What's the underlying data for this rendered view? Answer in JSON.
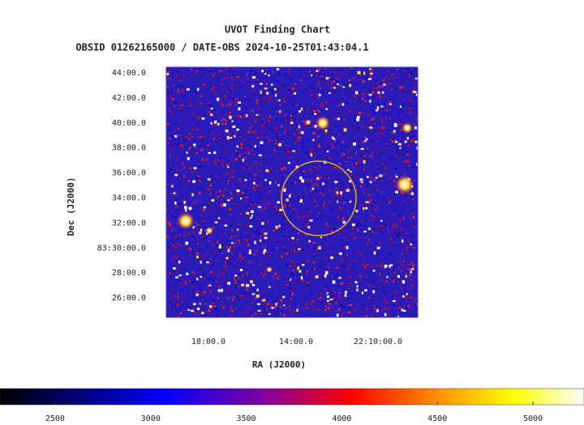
{
  "title": "UVOT Finding Chart",
  "subtitle": "OBSID 01262165000 / DATE-OBS 2024-10-25T01:43:04.1",
  "y_axis": {
    "label": "Dec (J2000)",
    "ticks": [
      "44:00.0",
      "42:00.0",
      "40:00.0",
      "38:00.0",
      "36:00.0",
      "34:00.0",
      "32:00.0",
      "83:30:00.0",
      "28:00.0",
      "26:00.0"
    ]
  },
  "x_axis": {
    "label": "RA (J2000)",
    "ticks": [
      "18:00.0",
      "14:00.0",
      "22:10:00.0"
    ]
  },
  "colorbar": {
    "lim": [
      2212,
      5267
    ],
    "ticks": [
      2500,
      3000,
      3500,
      4000,
      4500,
      5000
    ]
  }
}
